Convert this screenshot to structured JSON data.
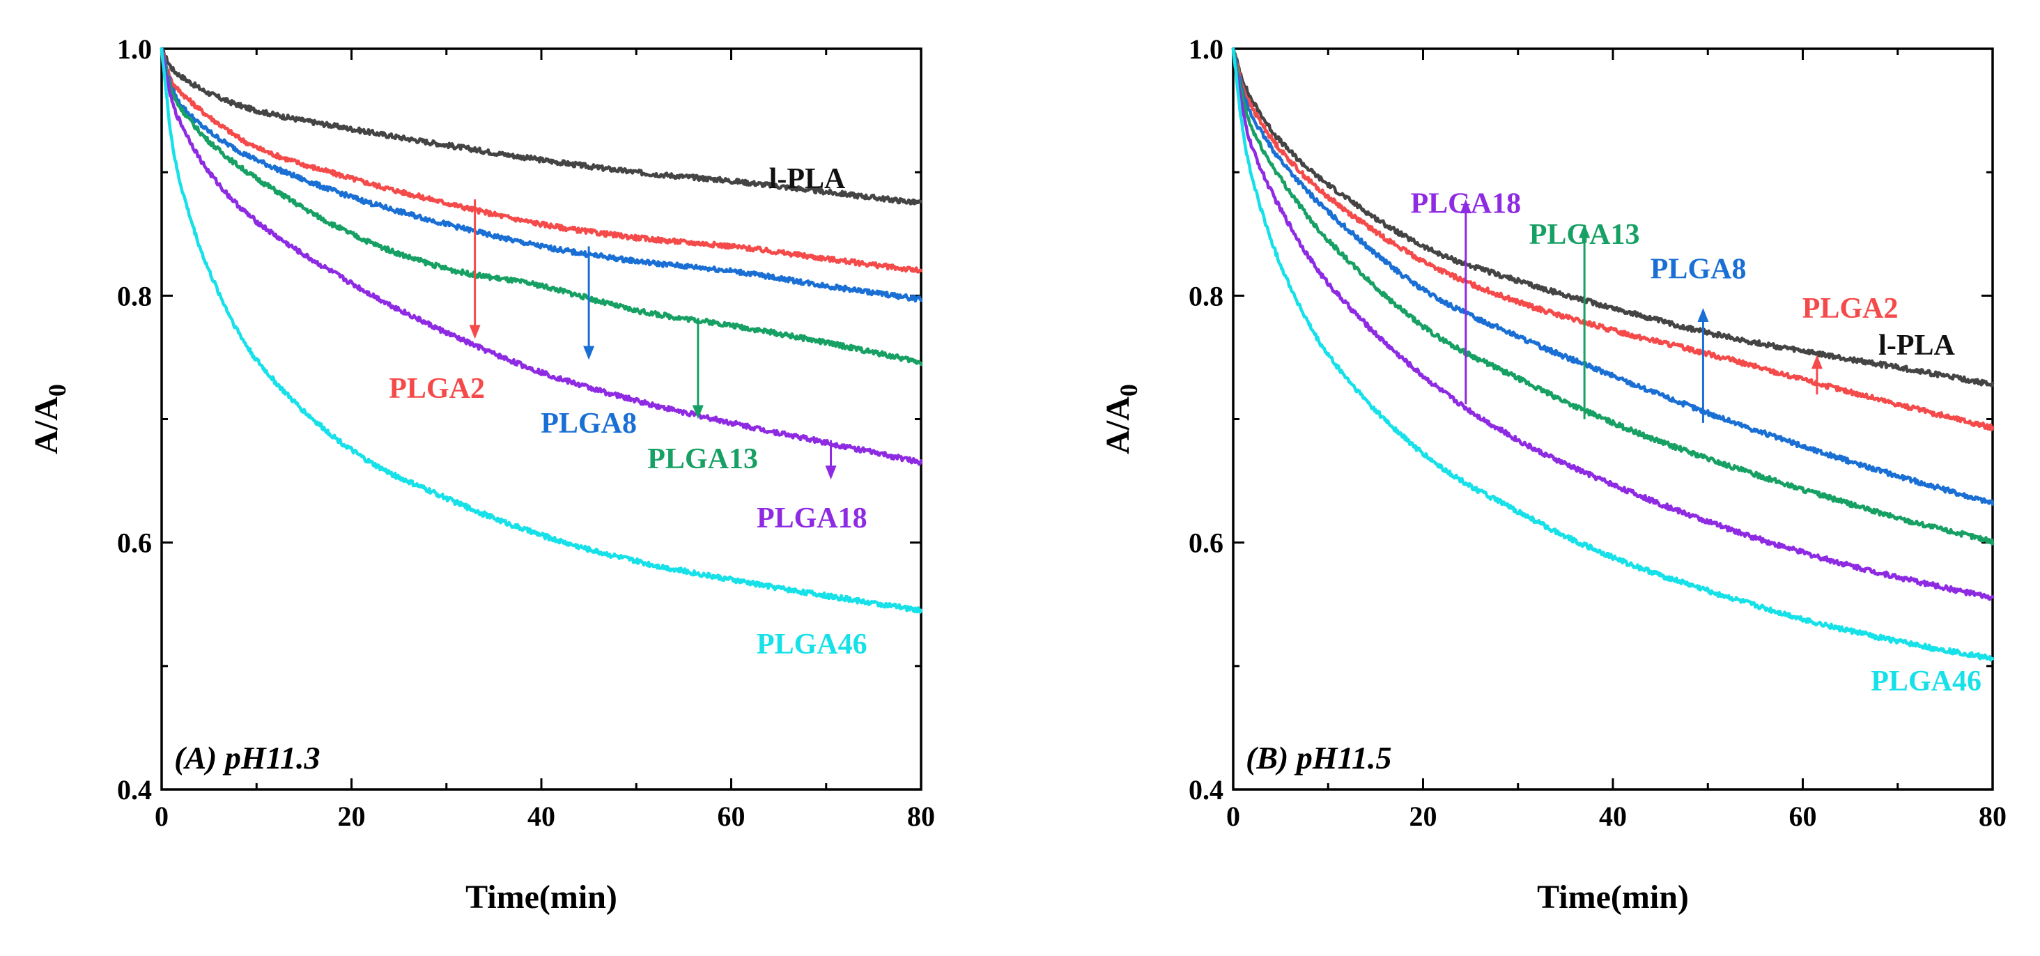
{
  "chart_data": [
    {
      "type": "line",
      "panel_label": "(A) pH11.3",
      "xlabel": "Time(min)",
      "ylabel": "A/A0",
      "xlim": [
        0,
        80
      ],
      "ylim": [
        0.4,
        1.0
      ],
      "x_ticks": [
        0,
        20,
        40,
        60,
        80
      ],
      "y_ticks": [
        0.4,
        0.6,
        0.8,
        1.0
      ],
      "x_tick_labels": [
        "0",
        "20",
        "40",
        "60",
        "80"
      ],
      "y_tick_labels": [
        "0.4",
        "0.6",
        "0.8",
        "1.0"
      ],
      "x": [
        0,
        1,
        2,
        5,
        10,
        20,
        30,
        40,
        50,
        60,
        70,
        80
      ],
      "series": [
        {
          "name": "l-PLA",
          "color": "#444444",
          "values": [
            1.0,
            0.985,
            0.978,
            0.964,
            0.95,
            0.935,
            0.922,
            0.91,
            0.9,
            0.893,
            0.884,
            0.875
          ]
        },
        {
          "name": "PLGA2",
          "color": "#f44a4a",
          "values": [
            1.0,
            0.975,
            0.965,
            0.945,
            0.92,
            0.895,
            0.875,
            0.858,
            0.847,
            0.84,
            0.83,
            0.82
          ]
        },
        {
          "name": "PLGA8",
          "color": "#1a6fd4",
          "values": [
            1.0,
            0.97,
            0.955,
            0.933,
            0.91,
            0.88,
            0.858,
            0.84,
            0.828,
            0.82,
            0.808,
            0.797
          ]
        },
        {
          "name": "PLGA13",
          "color": "#17a063",
          "values": [
            1.0,
            0.967,
            0.952,
            0.925,
            0.895,
            0.85,
            0.822,
            0.808,
            0.788,
            0.776,
            0.762,
            0.746
          ]
        },
        {
          "name": "PLGA18",
          "color": "#8e2be2",
          "values": [
            1.0,
            0.96,
            0.94,
            0.9,
            0.86,
            0.81,
            0.77,
            0.738,
            0.715,
            0.697,
            0.681,
            0.665
          ]
        },
        {
          "name": "PLGA46",
          "color": "#16e0e8",
          "values": [
            1.0,
            0.93,
            0.89,
            0.82,
            0.748,
            0.675,
            0.636,
            0.606,
            0.585,
            0.57,
            0.557,
            0.545
          ]
        }
      ],
      "annotations": [
        {
          "text": "l-PLA",
          "series": "l-PLA",
          "label_x": 68,
          "label_y": 0.895
        },
        {
          "text": "PLGA2",
          "series": "PLGA2",
          "arrow_from": [
            33,
            0.878
          ],
          "arrow_to": [
            33,
            0.765
          ],
          "label_x": 29,
          "label_y": 0.725
        },
        {
          "text": "PLGA8",
          "series": "PLGA8",
          "arrow_from": [
            45,
            0.84
          ],
          "arrow_to": [
            45,
            0.748
          ],
          "label_x": 45,
          "label_y": 0.697
        },
        {
          "text": "PLGA13",
          "series": "PLGA13",
          "arrow_from": [
            56.5,
            0.782
          ],
          "arrow_to": [
            56.5,
            0.7
          ],
          "label_x": 57,
          "label_y": 0.668
        },
        {
          "text": "PLGA18",
          "series": "PLGA18",
          "arrow_from": [
            70.5,
            0.683
          ],
          "arrow_to": [
            70.5,
            0.651
          ],
          "label_x": 68.5,
          "label_y": 0.62
        },
        {
          "text": "PLGA46",
          "series": "PLGA46",
          "label_x": 68.5,
          "label_y": 0.518
        }
      ]
    },
    {
      "type": "line",
      "panel_label": "(B) pH11.5",
      "xlabel": "Time(min)",
      "ylabel": "A/A0",
      "xlim": [
        0,
        80
      ],
      "ylim": [
        0.4,
        1.0
      ],
      "x_ticks": [
        0,
        20,
        40,
        60,
        80
      ],
      "y_ticks": [
        0.4,
        0.6,
        0.8,
        1.0
      ],
      "x_tick_labels": [
        "0",
        "20",
        "40",
        "60",
        "80"
      ],
      "y_tick_labels": [
        "0.4",
        "0.6",
        "0.8",
        "1.0"
      ],
      "x": [
        0,
        1,
        2,
        5,
        10,
        20,
        30,
        40,
        50,
        60,
        70,
        80
      ],
      "series": [
        {
          "name": "l-PLA",
          "color": "#444444",
          "values": [
            1.0,
            0.975,
            0.958,
            0.925,
            0.89,
            0.84,
            0.812,
            0.79,
            0.77,
            0.755,
            0.742,
            0.728
          ]
        },
        {
          "name": "PLGA2",
          "color": "#f44a4a",
          "values": [
            1.0,
            0.97,
            0.952,
            0.918,
            0.88,
            0.828,
            0.795,
            0.772,
            0.753,
            0.732,
            0.712,
            0.693
          ]
        },
        {
          "name": "PLGA8",
          "color": "#1a6fd4",
          "values": [
            1.0,
            0.965,
            0.945,
            0.91,
            0.868,
            0.805,
            0.767,
            0.735,
            0.705,
            0.678,
            0.654,
            0.632
          ]
        },
        {
          "name": "PLGA13",
          "color": "#17a063",
          "values": [
            1.0,
            0.96,
            0.935,
            0.895,
            0.845,
            0.775,
            0.733,
            0.697,
            0.668,
            0.643,
            0.62,
            0.601
          ]
        },
        {
          "name": "PLGA18",
          "color": "#8e2be2",
          "values": [
            1.0,
            0.95,
            0.92,
            0.87,
            0.81,
            0.735,
            0.683,
            0.647,
            0.617,
            0.592,
            0.572,
            0.555
          ]
        },
        {
          "name": "PLGA46",
          "color": "#16e0e8",
          "values": [
            1.0,
            0.935,
            0.895,
            0.825,
            0.752,
            0.672,
            0.625,
            0.588,
            0.561,
            0.538,
            0.52,
            0.506
          ]
        }
      ],
      "annotations": [
        {
          "text": "l-PLA",
          "series": "l-PLA",
          "label_x": 72,
          "label_y": 0.76
        },
        {
          "text": "PLGA2",
          "series": "PLGA2",
          "arrow_from": [
            61.5,
            0.72
          ],
          "arrow_to": [
            61.5,
            0.752
          ],
          "label_x": 65,
          "label_y": 0.79
        },
        {
          "text": "PLGA8",
          "series": "PLGA8",
          "arrow_from": [
            49.5,
            0.697
          ],
          "arrow_to": [
            49.5,
            0.79
          ],
          "label_x": 49,
          "label_y": 0.822
        },
        {
          "text": "PLGA13",
          "series": "PLGA13",
          "arrow_from": [
            37,
            0.7
          ],
          "arrow_to": [
            37,
            0.858
          ],
          "label_x": 37,
          "label_y": 0.85
        },
        {
          "text": "PLGA18",
          "series": "PLGA18",
          "arrow_from": [
            24.5,
            0.712
          ],
          "arrow_to": [
            24.5,
            0.878
          ],
          "label_x": 24.5,
          "label_y": 0.875
        },
        {
          "text": "PLGA46",
          "series": "PLGA46",
          "label_x": 73,
          "label_y": 0.488
        }
      ]
    }
  ]
}
